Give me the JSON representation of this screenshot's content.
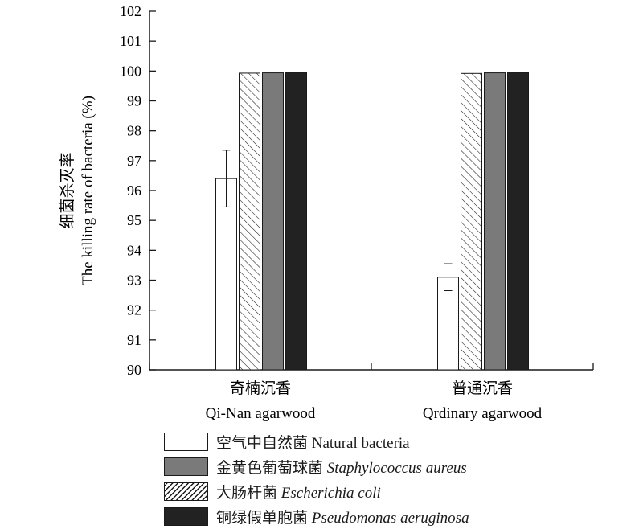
{
  "chart_data": {
    "type": "bar",
    "ylabel_cn": "细菌杀灭率",
    "ylabel_en": "The killing rate of bacteria (%)",
    "ylim": [
      90,
      102
    ],
    "yticks": [
      "90",
      "91",
      "92",
      "93",
      "94",
      "95",
      "96",
      "97",
      "98",
      "99",
      "100",
      "101",
      "102"
    ],
    "categories": [
      {
        "cn": "奇楠沉香",
        "en": "Qi-Nan agarwood"
      },
      {
        "cn": "普通沉香",
        "en": "Qrdinary agarwood"
      }
    ],
    "series": [
      {
        "name_cn": "空气中自然菌",
        "name_en": "Natural bacteria",
        "italic": false,
        "pattern": "white",
        "values": [
          96.4,
          93.1
        ],
        "errors": [
          0.95,
          0.45
        ]
      },
      {
        "name_cn": "大肠杆菌",
        "name_en": "Escherichia coli",
        "italic": true,
        "pattern": "hatch",
        "values": [
          99.93,
          99.92
        ],
        "errors": [
          0,
          0
        ]
      },
      {
        "name_cn": "金黄色葡萄球菌",
        "name_en": "Staphylococcus aureus",
        "italic": true,
        "pattern": "#7a7a7a",
        "values": [
          99.94,
          99.94
        ],
        "errors": [
          0,
          0
        ]
      },
      {
        "name_cn": "铜绿假单胞菌",
        "name_en": "Pseudomonas aeruginosa",
        "italic": true,
        "pattern": "#222222",
        "values": [
          99.95,
          99.95
        ],
        "errors": [
          0,
          0
        ]
      }
    ],
    "legend_order": [
      0,
      2,
      1,
      3
    ],
    "grid": false,
    "legend_position": "bottom"
  }
}
